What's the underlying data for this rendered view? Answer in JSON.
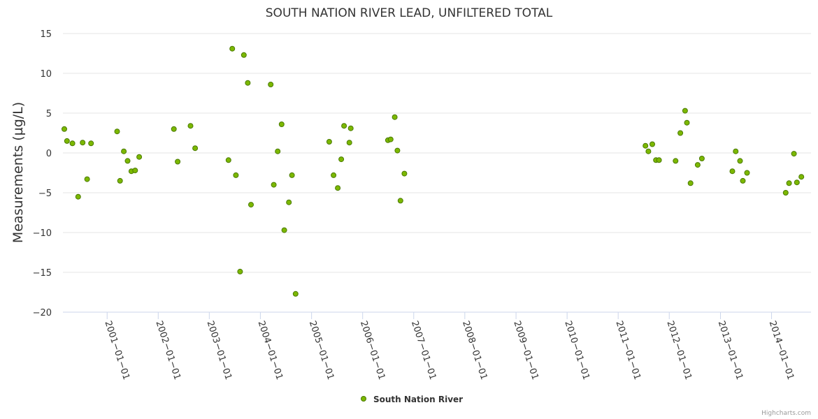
{
  "chart_data": {
    "type": "scatter",
    "title": "SOUTH NATION RIVER LEAD, UNFILTERED TOTAL",
    "ylabel": "Measurements (µg/L)",
    "xlabel": "",
    "ylim": [
      -20,
      15
    ],
    "yticks": [
      -20,
      -15,
      -10,
      -5,
      0,
      5,
      10,
      15
    ],
    "xlim": [
      "2000-02-20",
      "2014-10-10"
    ],
    "xticks": [
      "2001-01-01",
      "2002-01-01",
      "2003-01-01",
      "2004-01-01",
      "2005-01-01",
      "2006-01-01",
      "2007-01-01",
      "2008-01-01",
      "2009-01-01",
      "2010-01-01",
      "2011-01-01",
      "2012-01-01",
      "2013-01-01",
      "2014-01-01"
    ],
    "grid": true,
    "legend_position": "bottom-center",
    "colors": {
      "marker_fill": "#7cb800",
      "marker_stroke": "#4a7a00",
      "grid": "#e6e6e6",
      "axis": "#ccd6eb"
    },
    "series": [
      {
        "name": "South Nation River",
        "points": [
          {
            "x": "2000-03-01",
            "y": 3.0
          },
          {
            "x": "2000-03-20",
            "y": 1.5
          },
          {
            "x": "2000-04-28",
            "y": 1.2
          },
          {
            "x": "2000-06-08",
            "y": -5.5
          },
          {
            "x": "2000-07-10",
            "y": 1.3
          },
          {
            "x": "2000-08-11",
            "y": -3.3
          },
          {
            "x": "2000-09-08",
            "y": 1.2
          },
          {
            "x": "2001-03-13",
            "y": 2.7
          },
          {
            "x": "2001-04-03",
            "y": -3.5
          },
          {
            "x": "2001-04-30",
            "y": 0.2
          },
          {
            "x": "2001-05-27",
            "y": -1.0
          },
          {
            "x": "2001-06-23",
            "y": -2.3
          },
          {
            "x": "2001-07-20",
            "y": -2.2
          },
          {
            "x": "2001-08-18",
            "y": -0.5
          },
          {
            "x": "2002-04-23",
            "y": 3.0
          },
          {
            "x": "2002-05-20",
            "y": -1.1
          },
          {
            "x": "2002-08-20",
            "y": 3.4
          },
          {
            "x": "2002-09-22",
            "y": 0.6
          },
          {
            "x": "2003-05-18",
            "y": -0.9
          },
          {
            "x": "2003-06-14",
            "y": 13.1
          },
          {
            "x": "2003-07-10",
            "y": -2.8
          },
          {
            "x": "2003-08-09",
            "y": -14.9
          },
          {
            "x": "2003-09-05",
            "y": 12.3
          },
          {
            "x": "2003-10-03",
            "y": 8.8
          },
          {
            "x": "2003-10-26",
            "y": -6.5
          },
          {
            "x": "2004-03-15",
            "y": 8.6
          },
          {
            "x": "2004-04-06",
            "y": -4.0
          },
          {
            "x": "2004-05-04",
            "y": 0.2
          },
          {
            "x": "2004-06-01",
            "y": 3.6
          },
          {
            "x": "2004-06-20",
            "y": -9.7
          },
          {
            "x": "2004-07-23",
            "y": -6.2
          },
          {
            "x": "2004-08-14",
            "y": -2.8
          },
          {
            "x": "2004-09-09",
            "y": -17.7
          },
          {
            "x": "2005-05-07",
            "y": 1.4
          },
          {
            "x": "2005-06-07",
            "y": -2.8
          },
          {
            "x": "2005-07-07",
            "y": -4.4
          },
          {
            "x": "2005-08-01",
            "y": -0.8
          },
          {
            "x": "2005-08-21",
            "y": 3.4
          },
          {
            "x": "2005-09-28",
            "y": 1.3
          },
          {
            "x": "2005-10-08",
            "y": 3.1
          },
          {
            "x": "2006-07-01",
            "y": 1.6
          },
          {
            "x": "2006-07-20",
            "y": 1.7
          },
          {
            "x": "2006-08-18",
            "y": 4.5
          },
          {
            "x": "2006-09-06",
            "y": 0.3
          },
          {
            "x": "2006-09-28",
            "y": -6.0
          },
          {
            "x": "2006-10-26",
            "y": -2.6
          },
          {
            "x": "2011-07-15",
            "y": 0.9
          },
          {
            "x": "2011-08-05",
            "y": 0.2
          },
          {
            "x": "2011-09-02",
            "y": 1.1
          },
          {
            "x": "2011-09-28",
            "y": -0.9
          },
          {
            "x": "2011-10-20",
            "y": -0.9
          },
          {
            "x": "2012-02-15",
            "y": -1.0
          },
          {
            "x": "2012-03-20",
            "y": 2.5
          },
          {
            "x": "2012-04-23",
            "y": 5.3
          },
          {
            "x": "2012-05-06",
            "y": 3.8
          },
          {
            "x": "2012-06-01",
            "y": -3.8
          },
          {
            "x": "2012-07-22",
            "y": -1.5
          },
          {
            "x": "2012-08-21",
            "y": -0.7
          },
          {
            "x": "2013-03-27",
            "y": -2.3
          },
          {
            "x": "2013-04-20",
            "y": 0.2
          },
          {
            "x": "2013-05-21",
            "y": -1.0
          },
          {
            "x": "2013-06-10",
            "y": -3.5
          },
          {
            "x": "2013-07-10",
            "y": -2.5
          },
          {
            "x": "2014-04-12",
            "y": -5.0
          },
          {
            "x": "2014-05-06",
            "y": -3.8
          },
          {
            "x": "2014-06-10",
            "y": -0.1
          },
          {
            "x": "2014-07-01",
            "y": -3.7
          },
          {
            "x": "2014-08-02",
            "y": -3.0
          }
        ]
      }
    ]
  },
  "credit": "Highcharts.com"
}
